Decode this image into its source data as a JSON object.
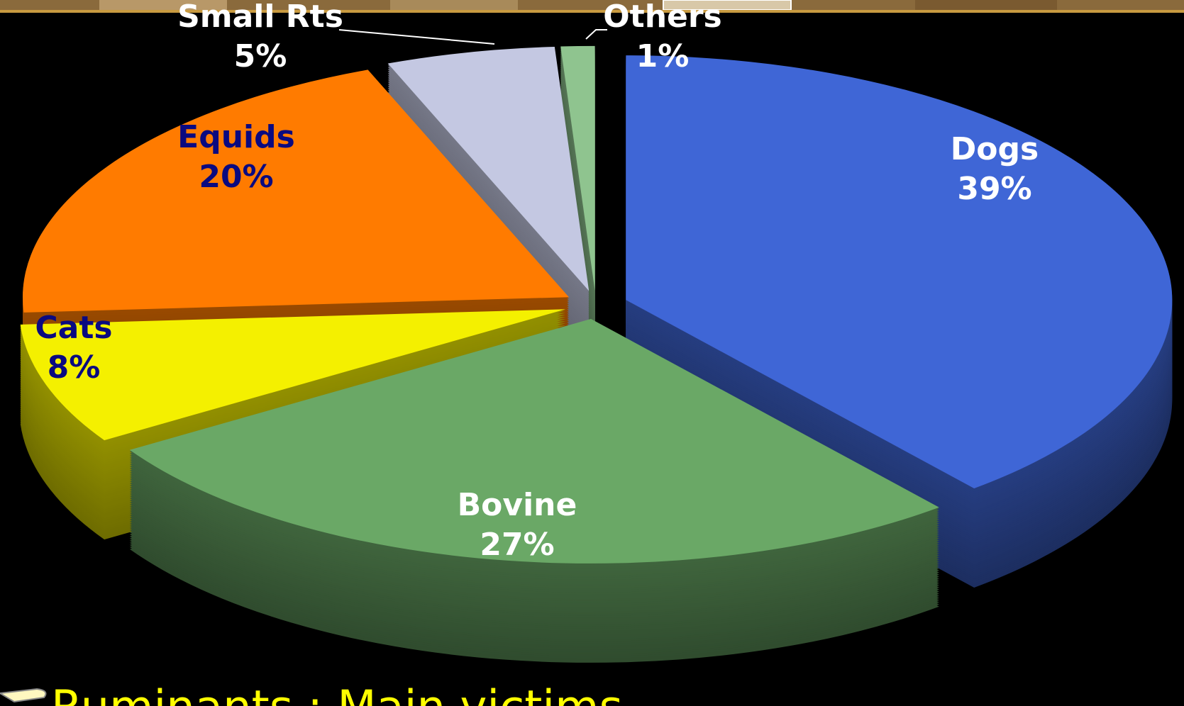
{
  "chart_data": {
    "type": "pie",
    "categories": [
      "Dogs",
      "Bovine",
      "Cats",
      "Equids",
      "Small Rts",
      "Others"
    ],
    "values": [
      39,
      27,
      8,
      20,
      5,
      1
    ],
    "value_labels": [
      "39%",
      "27%",
      "8%",
      "20%",
      "5%",
      "1%"
    ],
    "colors": [
      "#3f66d6",
      "#6aa866",
      "#f4f000",
      "#ff7b00",
      "#c4c8e2",
      "#8fc48f"
    ],
    "label_colors": [
      "#ffffff",
      "#ffffff",
      "#0a0a80",
      "#0a0a80",
      "#ffffff",
      "#ffffff"
    ]
  },
  "caption": "Ruminants : Main victims"
}
